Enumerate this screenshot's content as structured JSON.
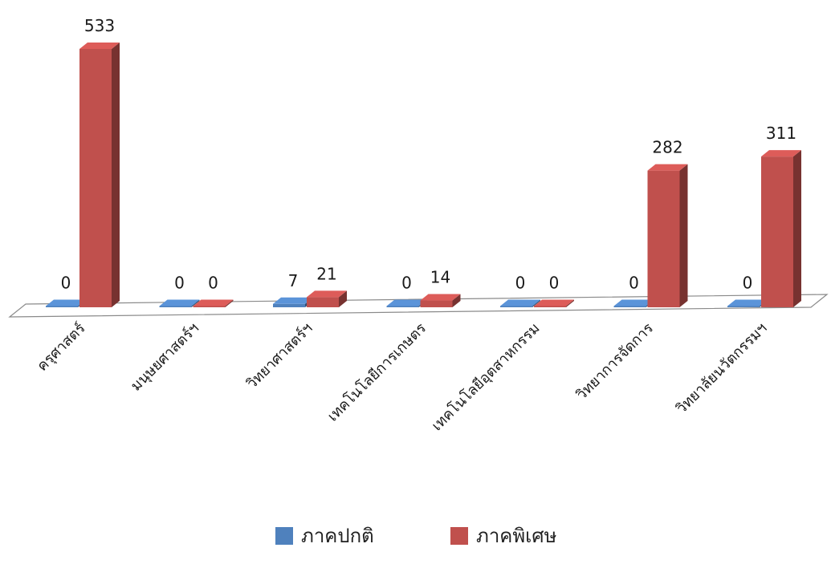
{
  "chart_data": {
    "type": "bar",
    "style": "3d-column",
    "categories": [
      "ครุศาสตร์",
      "มนุษยศาสตร์ฯ",
      "วิทยาศาสตร์ฯ",
      "เทคโนโลยีการเกษตร",
      "เทคโนโลยีอุตสาหกรรม",
      "วิทยาการจัดการ",
      "วิทยาลัยนวัตกรรมฯ"
    ],
    "series": [
      {
        "name": "ภาคปกติ",
        "values": [
          0,
          0,
          7,
          0,
          0,
          0,
          0
        ],
        "color": "#4f81bd"
      },
      {
        "name": "ภาคพิเศษ",
        "values": [
          533,
          0,
          21,
          14,
          0,
          282,
          311
        ],
        "color": "#c0504d"
      }
    ],
    "ylim": [
      0,
      533
    ],
    "grid": false,
    "data_labels": true,
    "legend_position": "bottom"
  }
}
